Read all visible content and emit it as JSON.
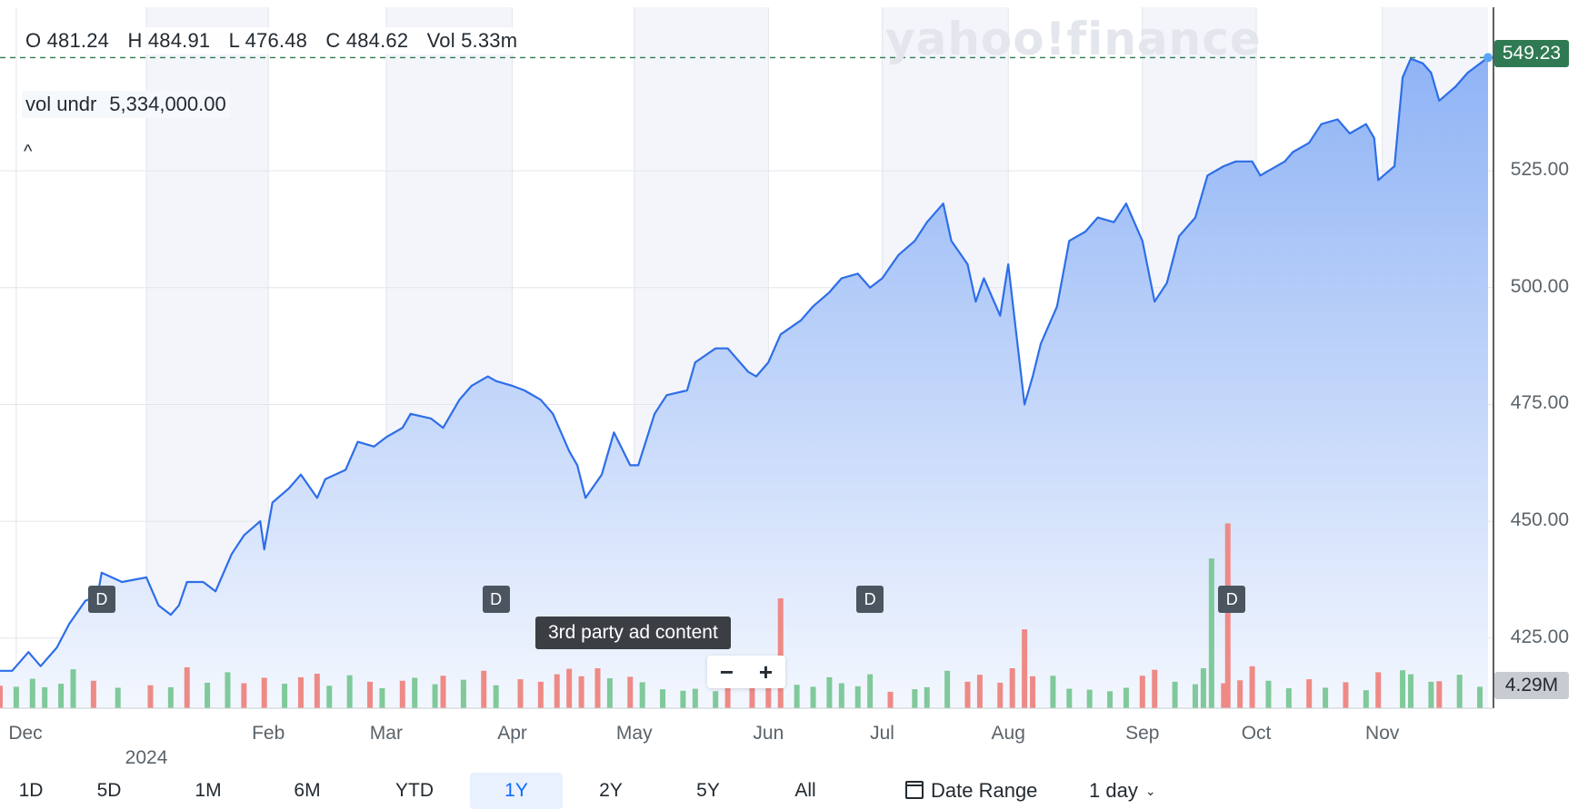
{
  "header": {
    "open_label": "O",
    "open": "481.24",
    "high_label": "H",
    "high": "484.91",
    "low_label": "L",
    "low": "476.48",
    "close_label": "C",
    "close": "484.62",
    "vol_label": "Vol",
    "vol": "5.33m"
  },
  "volume_underlay": {
    "label": "vol undr",
    "value": "5,334,000.00"
  },
  "collapse_glyph": "^",
  "watermark": "yahoo!finance",
  "current_price_label": "549.23",
  "current_volume_label": "4.29M",
  "ad_tooltip": "3rd party ad content",
  "zoom": {
    "minus": "−",
    "plus": "+"
  },
  "dividend_label": "D",
  "time_ranges": [
    {
      "label": "1D",
      "active": false
    },
    {
      "label": "5D",
      "active": false
    },
    {
      "label": "1M",
      "active": false
    },
    {
      "label": "6M",
      "active": false
    },
    {
      "label": "YTD",
      "active": false
    },
    {
      "label": "1Y",
      "active": true
    },
    {
      "label": "2Y",
      "active": false
    },
    {
      "label": "5Y",
      "active": false
    },
    {
      "label": "All",
      "active": false
    }
  ],
  "date_range_label": "Date Range",
  "interval_label": "1 day",
  "colors": {
    "line": "#2d6ee8",
    "area_top": "#8fb3f5",
    "area_bottom": "#f3f7fe",
    "vol_up": "#7fc99a",
    "vol_down": "#ee8a86",
    "price_tag": "#2f7a52"
  },
  "chart_data": {
    "type": "area",
    "y_axis": {
      "ticks": [
        425,
        450,
        475,
        500,
        525
      ],
      "tick_labels": [
        "425.00",
        "450.00",
        "475.00",
        "500.00",
        "525.00"
      ],
      "range": [
        410,
        560
      ],
      "position": "right"
    },
    "x_axis": {
      "tick_labels": [
        "Dec",
        "Feb",
        "Mar",
        "Apr",
        "May",
        "Jun",
        "Jul",
        "Aug",
        "Sep",
        "Oct",
        "Nov"
      ],
      "year_label": "2024",
      "range": [
        "2023-11-27",
        "2024-11-27"
      ]
    },
    "grid": true,
    "x_tick_dates": [
      "2023-12-01",
      "2024-02-01",
      "2024-03-01",
      "2024-04-01",
      "2024-05-01",
      "2024-06-03",
      "2024-07-01",
      "2024-08-01",
      "2024-09-03",
      "2024-10-01",
      "2024-11-01"
    ],
    "year_tick_date": "2024-01-02",
    "series": [
      {
        "values_by_date": [
          [
            "2023-11-27",
            418
          ],
          [
            "2023-11-30",
            418
          ],
          [
            "2023-12-04",
            422
          ],
          [
            "2023-12-07",
            419
          ],
          [
            "2023-12-11",
            423
          ],
          [
            "2023-12-14",
            428
          ],
          [
            "2023-12-18",
            433
          ],
          [
            "2023-12-21",
            434
          ],
          [
            "2023-12-22",
            439
          ],
          [
            "2023-12-27",
            437
          ],
          [
            "2024-01-02",
            438
          ],
          [
            "2024-01-05",
            432
          ],
          [
            "2024-01-08",
            430
          ],
          [
            "2024-01-10",
            432
          ],
          [
            "2024-01-12",
            437
          ],
          [
            "2024-01-16",
            437
          ],
          [
            "2024-01-19",
            435
          ],
          [
            "2024-01-23",
            443
          ],
          [
            "2024-01-26",
            447
          ],
          [
            "2024-01-30",
            450
          ],
          [
            "2024-01-31",
            444
          ],
          [
            "2024-02-02",
            454
          ],
          [
            "2024-02-06",
            457
          ],
          [
            "2024-02-09",
            460
          ],
          [
            "2024-02-13",
            455
          ],
          [
            "2024-02-15",
            459
          ],
          [
            "2024-02-20",
            461
          ],
          [
            "2024-02-23",
            467
          ],
          [
            "2024-02-27",
            466
          ],
          [
            "2024-03-01",
            468
          ],
          [
            "2024-03-05",
            470
          ],
          [
            "2024-03-07",
            473
          ],
          [
            "2024-03-12",
            472
          ],
          [
            "2024-03-15",
            470
          ],
          [
            "2024-03-19",
            476
          ],
          [
            "2024-03-22",
            479
          ],
          [
            "2024-03-26",
            481
          ],
          [
            "2024-03-28",
            480
          ],
          [
            "2024-04-01",
            479
          ],
          [
            "2024-04-04",
            478
          ],
          [
            "2024-04-08",
            476
          ],
          [
            "2024-04-11",
            473
          ],
          [
            "2024-04-15",
            465
          ],
          [
            "2024-04-17",
            462
          ],
          [
            "2024-04-19",
            455
          ],
          [
            "2024-04-23",
            460
          ],
          [
            "2024-04-26",
            469
          ],
          [
            "2024-04-30",
            462
          ],
          [
            "2024-05-02",
            462
          ],
          [
            "2024-05-06",
            473
          ],
          [
            "2024-05-09",
            477
          ],
          [
            "2024-05-14",
            478
          ],
          [
            "2024-05-16",
            484
          ],
          [
            "2024-05-21",
            487
          ],
          [
            "2024-05-24",
            487
          ],
          [
            "2024-05-29",
            482
          ],
          [
            "2024-05-31",
            481
          ],
          [
            "2024-06-03",
            484
          ],
          [
            "2024-06-06",
            490
          ],
          [
            "2024-06-11",
            493
          ],
          [
            "2024-06-14",
            496
          ],
          [
            "2024-06-18",
            499
          ],
          [
            "2024-06-21",
            502
          ],
          [
            "2024-06-25",
            503
          ],
          [
            "2024-06-28",
            500
          ],
          [
            "2024-07-01",
            502
          ],
          [
            "2024-07-05",
            507
          ],
          [
            "2024-07-09",
            510
          ],
          [
            "2024-07-12",
            514
          ],
          [
            "2024-07-16",
            518
          ],
          [
            "2024-07-18",
            510
          ],
          [
            "2024-07-22",
            505
          ],
          [
            "2024-07-24",
            497
          ],
          [
            "2024-07-26",
            502
          ],
          [
            "2024-07-30",
            494
          ],
          [
            "2024-08-01",
            505
          ],
          [
            "2024-08-05",
            475
          ],
          [
            "2024-08-07",
            481
          ],
          [
            "2024-08-09",
            488
          ],
          [
            "2024-08-13",
            496
          ],
          [
            "2024-08-16",
            510
          ],
          [
            "2024-08-20",
            512
          ],
          [
            "2024-08-23",
            515
          ],
          [
            "2024-08-27",
            514
          ],
          [
            "2024-08-30",
            518
          ],
          [
            "2024-09-03",
            510
          ],
          [
            "2024-09-06",
            497
          ],
          [
            "2024-09-09",
            501
          ],
          [
            "2024-09-12",
            511
          ],
          [
            "2024-09-16",
            515
          ],
          [
            "2024-09-19",
            524
          ],
          [
            "2024-09-23",
            526
          ],
          [
            "2024-09-26",
            527
          ],
          [
            "2024-09-30",
            527
          ],
          [
            "2024-10-02",
            524
          ],
          [
            "2024-10-04",
            525
          ],
          [
            "2024-10-08",
            527
          ],
          [
            "2024-10-10",
            529
          ],
          [
            "2024-10-14",
            531
          ],
          [
            "2024-10-17",
            535
          ],
          [
            "2024-10-21",
            536
          ],
          [
            "2024-10-24",
            533
          ],
          [
            "2024-10-28",
            535
          ],
          [
            "2024-10-30",
            532
          ],
          [
            "2024-10-31",
            523
          ],
          [
            "2024-11-04",
            526
          ],
          [
            "2024-11-06",
            545
          ],
          [
            "2024-11-08",
            549
          ],
          [
            "2024-11-11",
            548
          ],
          [
            "2024-11-13",
            546
          ],
          [
            "2024-11-15",
            540
          ],
          [
            "2024-11-19",
            543
          ],
          [
            "2024-11-22",
            546
          ],
          [
            "2024-11-27",
            549.23
          ]
        ]
      }
    ],
    "dividend_dates": [
      "2023-12-22",
      "2024-03-28",
      "2024-06-28",
      "2024-09-25"
    ],
    "volume_series": {
      "values_by_date": [
        [
          "2023-11-27",
          4.5,
          "down"
        ],
        [
          "2023-12-01",
          4.3,
          "up"
        ],
        [
          "2023-12-05",
          5.9,
          "up"
        ],
        [
          "2023-12-08",
          4.2,
          "up"
        ],
        [
          "2023-12-12",
          4.9,
          "up"
        ],
        [
          "2023-12-15",
          7.8,
          "up"
        ],
        [
          "2023-12-20",
          5.5,
          "down"
        ],
        [
          "2023-12-26",
          4.1,
          "up"
        ],
        [
          "2024-01-03",
          4.6,
          "down"
        ],
        [
          "2024-01-08",
          4.2,
          "up"
        ],
        [
          "2024-01-12",
          8.2,
          "down"
        ],
        [
          "2024-01-17",
          5.1,
          "up"
        ],
        [
          "2024-01-22",
          7.2,
          "up"
        ],
        [
          "2024-01-26",
          5.0,
          "down"
        ],
        [
          "2024-01-31",
          6.1,
          "down"
        ],
        [
          "2024-02-05",
          4.9,
          "up"
        ],
        [
          "2024-02-09",
          6.2,
          "down"
        ],
        [
          "2024-02-13",
          6.9,
          "down"
        ],
        [
          "2024-02-16",
          4.5,
          "up"
        ],
        [
          "2024-02-21",
          6.6,
          "up"
        ],
        [
          "2024-02-26",
          5.3,
          "down"
        ],
        [
          "2024-02-29",
          4.0,
          "up"
        ],
        [
          "2024-03-05",
          5.5,
          "down"
        ],
        [
          "2024-03-08",
          6.1,
          "up"
        ],
        [
          "2024-03-13",
          4.8,
          "up"
        ],
        [
          "2024-03-15",
          6.5,
          "down"
        ],
        [
          "2024-03-20",
          5.7,
          "up"
        ],
        [
          "2024-03-25",
          7.5,
          "down"
        ],
        [
          "2024-03-28",
          4.6,
          "up"
        ],
        [
          "2024-04-03",
          5.8,
          "down"
        ],
        [
          "2024-04-08",
          5.3,
          "down"
        ],
        [
          "2024-04-12",
          6.8,
          "down"
        ],
        [
          "2024-04-15",
          7.9,
          "down"
        ],
        [
          "2024-04-18",
          6.4,
          "down"
        ],
        [
          "2024-04-22",
          8.0,
          "down"
        ],
        [
          "2024-04-25",
          6.0,
          "up"
        ],
        [
          "2024-04-30",
          6.3,
          "down"
        ],
        [
          "2024-05-03",
          5.2,
          "up"
        ],
        [
          "2024-05-08",
          3.8,
          "up"
        ],
        [
          "2024-05-13",
          3.5,
          "up"
        ],
        [
          "2024-05-16",
          3.9,
          "up"
        ],
        [
          "2024-05-21",
          3.4,
          "up"
        ],
        [
          "2024-05-24",
          4.2,
          "down"
        ],
        [
          "2024-05-30",
          4.5,
          "down"
        ],
        [
          "2024-06-03",
          5.1,
          "down"
        ],
        [
          "2024-06-06",
          22.0,
          "down"
        ],
        [
          "2024-06-10",
          4.7,
          "up"
        ],
        [
          "2024-06-14",
          4.3,
          "up"
        ],
        [
          "2024-06-18",
          6.2,
          "up"
        ],
        [
          "2024-06-21",
          5.0,
          "up"
        ],
        [
          "2024-06-25",
          4.4,
          "up"
        ],
        [
          "2024-06-28",
          6.8,
          "up"
        ],
        [
          "2024-07-03",
          3.3,
          "down"
        ],
        [
          "2024-07-09",
          3.8,
          "up"
        ],
        [
          "2024-07-12",
          4.2,
          "up"
        ],
        [
          "2024-07-17",
          7.5,
          "up"
        ],
        [
          "2024-07-22",
          5.3,
          "down"
        ],
        [
          "2024-07-25",
          6.7,
          "down"
        ],
        [
          "2024-07-30",
          5.1,
          "down"
        ],
        [
          "2024-08-02",
          8.0,
          "down"
        ],
        [
          "2024-08-05",
          15.8,
          "down"
        ],
        [
          "2024-08-07",
          6.4,
          "down"
        ],
        [
          "2024-08-12",
          6.5,
          "up"
        ],
        [
          "2024-08-16",
          3.9,
          "up"
        ],
        [
          "2024-08-21",
          3.7,
          "up"
        ],
        [
          "2024-08-26",
          3.4,
          "up"
        ],
        [
          "2024-08-30",
          4.1,
          "up"
        ],
        [
          "2024-09-03",
          6.5,
          "down"
        ],
        [
          "2024-09-06",
          7.7,
          "down"
        ],
        [
          "2024-09-11",
          5.3,
          "up"
        ],
        [
          "2024-09-16",
          4.8,
          "up"
        ],
        [
          "2024-09-18",
          8.0,
          "up"
        ],
        [
          "2024-09-20",
          30.0,
          "up"
        ],
        [
          "2024-09-23",
          5.0,
          "down"
        ],
        [
          "2024-09-24",
          37.0,
          "down"
        ],
        [
          "2024-09-27",
          5.6,
          "down"
        ],
        [
          "2024-09-30",
          8.4,
          "down"
        ],
        [
          "2024-10-04",
          5.5,
          "up"
        ],
        [
          "2024-10-09",
          4.0,
          "up"
        ],
        [
          "2024-10-14",
          5.8,
          "down"
        ],
        [
          "2024-10-18",
          4.1,
          "up"
        ],
        [
          "2024-10-23",
          5.2,
          "down"
        ],
        [
          "2024-10-28",
          3.6,
          "up"
        ],
        [
          "2024-10-31",
          7.2,
          "down"
        ],
        [
          "2024-11-06",
          7.6,
          "up"
        ],
        [
          "2024-11-08",
          6.8,
          "up"
        ],
        [
          "2024-11-13",
          5.3,
          "up"
        ],
        [
          "2024-11-15",
          5.4,
          "down"
        ],
        [
          "2024-11-20",
          6.7,
          "up"
        ],
        [
          "2024-11-25",
          4.29,
          "up"
        ]
      ]
    }
  }
}
